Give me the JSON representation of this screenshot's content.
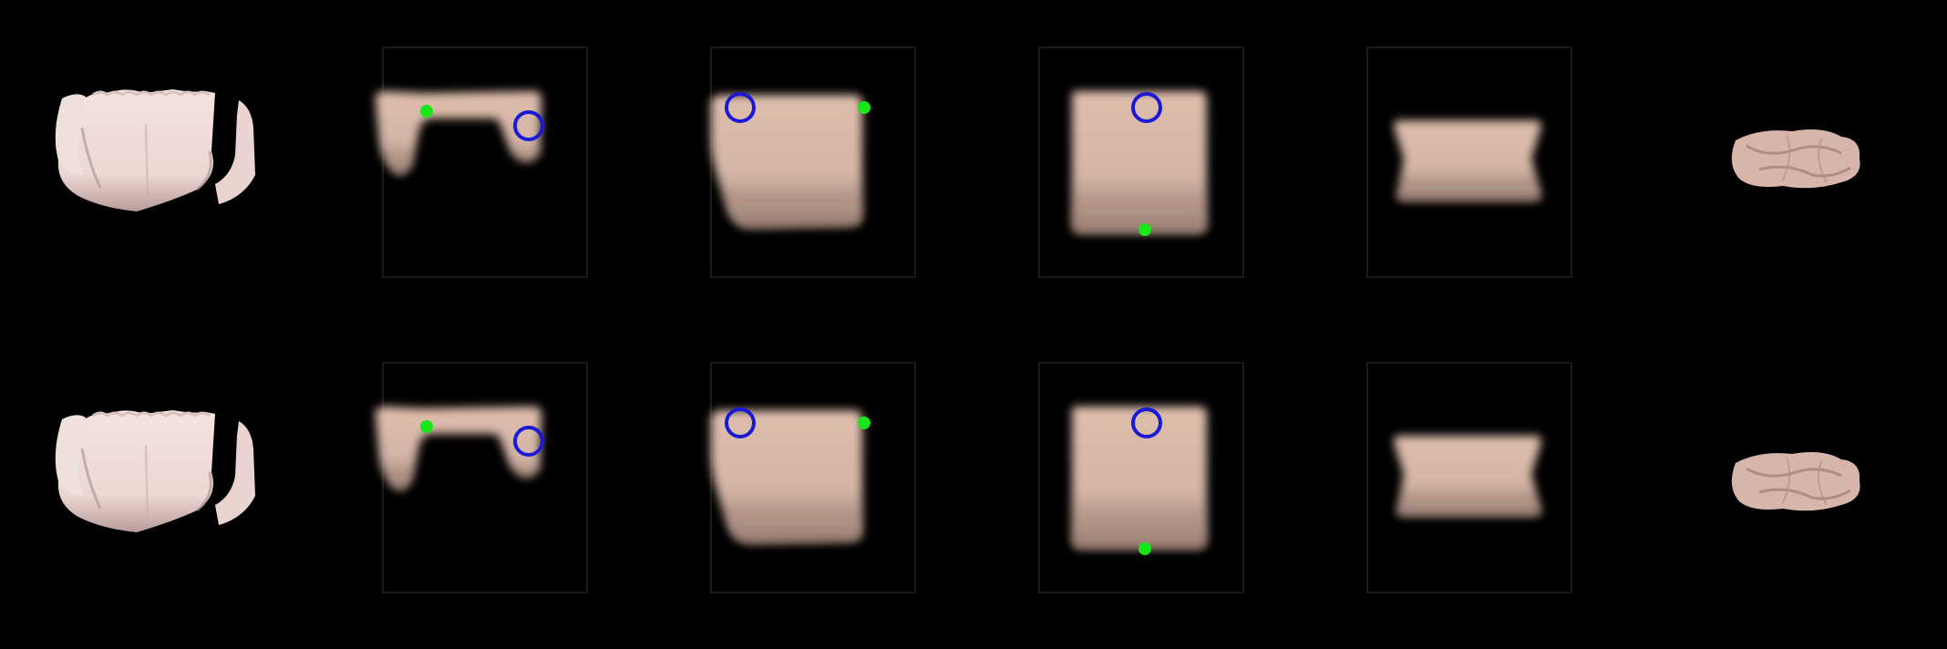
{
  "figure": {
    "rows": [
      {
        "id": "row-1",
        "frames": [
          {
            "kind": "photo-start",
            "cloth": "unfolded",
            "markers": []
          },
          {
            "kind": "predicted",
            "cloth": "wide-u",
            "markers": [
              {
                "type": "pick-dot"
              },
              {
                "type": "place-circle"
              }
            ]
          },
          {
            "kind": "predicted",
            "cloth": "left-flap",
            "markers": [
              {
                "type": "place-circle"
              },
              {
                "type": "pick-dot"
              }
            ]
          },
          {
            "kind": "predicted",
            "cloth": "rectangle",
            "markers": [
              {
                "type": "place-circle"
              },
              {
                "type": "pick-dot"
              }
            ]
          },
          {
            "kind": "predicted",
            "cloth": "folded-band",
            "markers": []
          },
          {
            "kind": "photo-end",
            "cloth": "crumpled",
            "markers": []
          }
        ]
      },
      {
        "id": "row-2",
        "frames": [
          {
            "kind": "photo-start",
            "cloth": "unfolded",
            "markers": []
          },
          {
            "kind": "predicted",
            "cloth": "wide-u",
            "markers": [
              {
                "type": "pick-dot"
              },
              {
                "type": "place-circle"
              }
            ]
          },
          {
            "kind": "predicted",
            "cloth": "left-flap",
            "markers": [
              {
                "type": "place-circle"
              },
              {
                "type": "pick-dot"
              }
            ]
          },
          {
            "kind": "predicted",
            "cloth": "rectangle",
            "markers": [
              {
                "type": "place-circle"
              },
              {
                "type": "pick-dot"
              }
            ]
          },
          {
            "kind": "predicted",
            "cloth": "folded-band",
            "markers": []
          },
          {
            "kind": "photo-end",
            "cloth": "crumpled",
            "markers": []
          }
        ]
      }
    ],
    "colors": {
      "background": "#000000",
      "cloth_photo": "#ecd7d3",
      "cloth_photo_shadow": "#b89d99",
      "cloth_pred": "#d9b6a4",
      "cloth_pred_dark": "#8f6f63",
      "pick_dot": "#19e619",
      "place_circle": "#1a1ad6",
      "frame_outline": "#1a1a1a"
    }
  }
}
